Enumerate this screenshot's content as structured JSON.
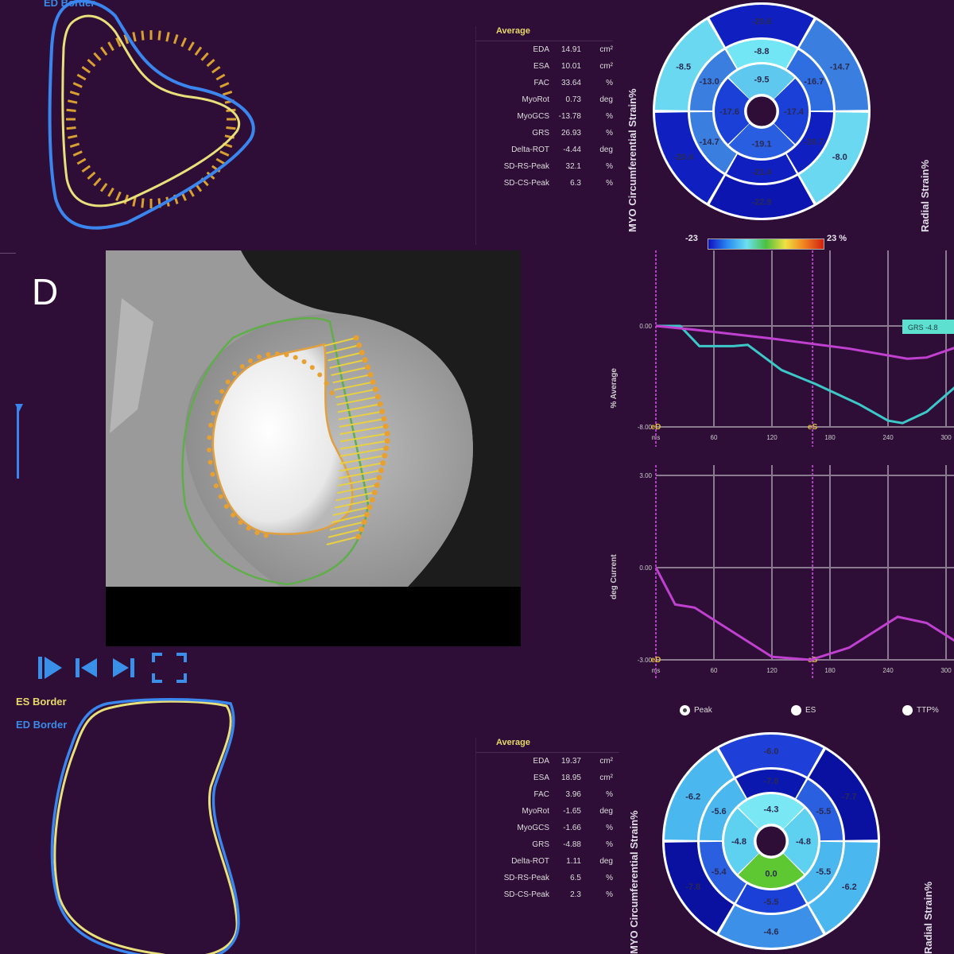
{
  "panel_letter": "D",
  "top_contours": {
    "ed_label": "ED Border"
  },
  "bottom_contours": {
    "es_label": "ES Border",
    "ed_label": "ED Border"
  },
  "top_table": {
    "header": "Average",
    "rows": [
      {
        "label": "EDA",
        "value": "14.91",
        "unit": "cm²"
      },
      {
        "label": "ESA",
        "value": "10.01",
        "unit": "cm²"
      },
      {
        "label": "FAC",
        "value": "33.64",
        "unit": "%"
      },
      {
        "label": "MyoRot",
        "value": "0.73",
        "unit": "deg"
      },
      {
        "label": "MyoGCS",
        "value": "-13.78",
        "unit": "%"
      },
      {
        "label": "GRS",
        "value": "26.93",
        "unit": "%"
      },
      {
        "label": "Delta-ROT",
        "value": "-4.44",
        "unit": "deg"
      },
      {
        "label": "SD-RS-Peak",
        "value": "32.1",
        "unit": "%"
      },
      {
        "label": "SD-CS-Peak",
        "value": "6.3",
        "unit": "%"
      }
    ]
  },
  "bottom_table": {
    "header": "Average",
    "rows": [
      {
        "label": "EDA",
        "value": "19.37",
        "unit": "cm²"
      },
      {
        "label": "ESA",
        "value": "18.95",
        "unit": "cm²"
      },
      {
        "label": "FAC",
        "value": "3.96",
        "unit": "%"
      },
      {
        "label": "MyoRot",
        "value": "-1.65",
        "unit": "deg"
      },
      {
        "label": "MyoGCS",
        "value": "-1.66",
        "unit": "%"
      },
      {
        "label": "GRS",
        "value": "-4.88",
        "unit": "%"
      },
      {
        "label": "Delta-ROT",
        "value": "1.11",
        "unit": "deg"
      },
      {
        "label": "SD-RS-Peak",
        "value": "6.5",
        "unit": "%"
      },
      {
        "label": "SD-CS-Peak",
        "value": "2.3",
        "unit": "%"
      }
    ]
  },
  "bullseye_top": {
    "left_label": "MYO Circumferential Strain%",
    "right_label": "Radial Strain%",
    "outer": [
      {
        "value": "-20.6",
        "color": "#1020c0"
      },
      {
        "value": "-14.7",
        "color": "#3a7fe0"
      },
      {
        "value": "-8.0",
        "color": "#6ad8f0"
      },
      {
        "value": "-22.9",
        "color": "#0d15b0"
      },
      {
        "value": "-20.4",
        "color": "#1020c0"
      },
      {
        "value": "-8.5",
        "color": "#6ad8f0"
      }
    ],
    "middle": [
      {
        "value": "-8.8",
        "color": "#72e6f4"
      },
      {
        "value": "-16.7",
        "color": "#2f6ee0"
      },
      {
        "value": "-20.7",
        "color": "#1020c0"
      },
      {
        "value": "-21.4",
        "color": "#1020c0"
      },
      {
        "value": "-14.7",
        "color": "#3a7fe0"
      },
      {
        "value": "-13.0",
        "color": "#3a7fe0"
      }
    ],
    "inner": [
      {
        "value": "-9.5",
        "color": "#5ec8ee"
      },
      {
        "value": "-17.4",
        "color": "#1a40d8"
      },
      {
        "value": "-19.1",
        "color": "#2a5ee0"
      },
      {
        "value": "-17.6",
        "color": "#1a40d8"
      }
    ]
  },
  "colorbar": {
    "min_label": "-23",
    "max_label": "23 %",
    "colors": [
      "#1010c0",
      "#2a8af0",
      "#6ae0f0",
      "#4cc040",
      "#f0e040",
      "#f08020",
      "#d02010"
    ]
  },
  "radio_options": [
    {
      "label": "Peak",
      "selected": true
    },
    {
      "label": "ES",
      "selected": false
    },
    {
      "label": "TTP%",
      "selected": false
    }
  ],
  "bullseye_bottom": {
    "left_label": "MYO Circumferential Strain%",
    "right_label": "Radial Strain%",
    "outer": [
      {
        "value": "-6.0",
        "color": "#1e40d8"
      },
      {
        "value": "-7.7",
        "color": "#0a10a0"
      },
      {
        "value": "-6.2",
        "color": "#4ab8ee"
      },
      {
        "value": "-4.6",
        "color": "#3c90e8"
      },
      {
        "value": "-7.8",
        "color": "#0a10a0"
      },
      {
        "value": "-6.2",
        "color": "#4ab8ee"
      }
    ],
    "middle": [
      {
        "value": "-7.6",
        "color": "#0a18b0"
      },
      {
        "value": "-5.5",
        "color": "#2a60e0"
      },
      {
        "value": "-5.5",
        "color": "#4ab8ee"
      },
      {
        "value": "-5.5",
        "color": "#1a40d8"
      },
      {
        "value": "-5.4",
        "color": "#2a60e0"
      },
      {
        "value": "-5.6",
        "color": "#4ab8ee"
      }
    ],
    "inner": [
      {
        "value": "-4.3",
        "color": "#7ae8f4"
      },
      {
        "value": "-4.8",
        "color": "#5ed0f0"
      },
      {
        "value": "0.0",
        "color": "#5ec832"
      },
      {
        "value": "-4.8",
        "color": "#5ed0f0"
      }
    ]
  },
  "chart_data": [
    {
      "type": "line",
      "ylabel": "% Average",
      "x_ticks": [
        "ms",
        "60",
        "120",
        "180",
        "240",
        "300"
      ],
      "y_ticks": [
        "0.00",
        "-8.00"
      ],
      "ylim": [
        -8,
        0
      ],
      "xlim": [
        0,
        300
      ],
      "markers": [
        {
          "label": "eD",
          "x": 0
        },
        {
          "label": "eS",
          "x": 162
        }
      ],
      "annotation": "GRS -4.8",
      "grid": true,
      "series": [
        {
          "color": "#3cc8c8",
          "x": [
            0,
            25,
            45,
            80,
            95,
            130,
            165,
            210,
            240,
            255,
            280,
            310
          ],
          "y": [
            0,
            0,
            -1.6,
            -1.6,
            -1.5,
            -3.5,
            -4.6,
            -6.2,
            -7.5,
            -7.7,
            -6.8,
            -4.8
          ]
        },
        {
          "color": "#c040d0",
          "x": [
            0,
            40,
            120,
            200,
            260,
            280,
            310
          ],
          "y": [
            0,
            -0.3,
            -1.0,
            -1.8,
            -2.6,
            -2.5,
            -1.7
          ]
        }
      ]
    },
    {
      "type": "line",
      "ylabel": "deg  Current",
      "x_ticks": [
        "ms",
        "60",
        "120",
        "180",
        "240",
        "300"
      ],
      "y_ticks": [
        "3.00",
        "0.00",
        "-3.00"
      ],
      "ylim": [
        -3,
        3
      ],
      "xlim": [
        0,
        300
      ],
      "markers": [
        {
          "label": "eD",
          "x": 0
        },
        {
          "label": "eS",
          "x": 162
        }
      ],
      "grid": true,
      "series": [
        {
          "color": "#c040d0",
          "x": [
            0,
            20,
            40,
            60,
            120,
            160,
            200,
            250,
            280,
            310
          ],
          "y": [
            0,
            -1.2,
            -1.3,
            -1.7,
            -2.9,
            -3.0,
            -2.6,
            -1.6,
            -1.8,
            -2.4
          ]
        }
      ]
    }
  ]
}
